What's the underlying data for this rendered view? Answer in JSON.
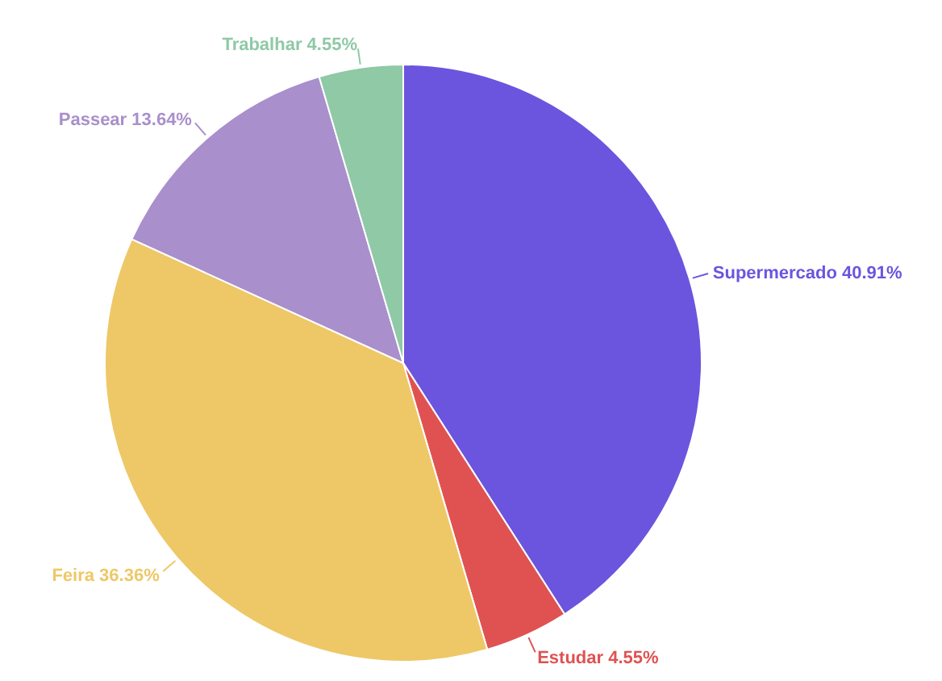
{
  "chart_data": {
    "type": "pie",
    "categories": [
      "Supermercado",
      "Estudar",
      "Feira",
      "Passear",
      "Trabalhar"
    ],
    "values": [
      40.91,
      4.55,
      36.36,
      13.64,
      4.55
    ],
    "value_labels": [
      "40.91%",
      "4.55%",
      "36.36%",
      "13.64%",
      "4.55%"
    ],
    "colors": [
      "#6b55de",
      "#e05252",
      "#eec867",
      "#a98fcb",
      "#8fc9a6"
    ]
  }
}
